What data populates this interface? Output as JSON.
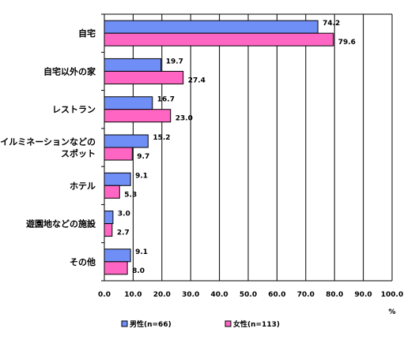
{
  "chart_data": {
    "type": "bar",
    "orientation": "horizontal",
    "categories": [
      [
        "自宅"
      ],
      [
        "自宅以外の家"
      ],
      [
        "レストラン"
      ],
      [
        "イルミネーションなどの",
        "スポット"
      ],
      [
        "ホテル"
      ],
      [
        "遊園地などの施設"
      ],
      [
        "その他"
      ]
    ],
    "series": [
      {
        "name": "男性(n=66)",
        "color": "#6f8ff7",
        "values": [
          74.2,
          19.7,
          16.7,
          15.2,
          9.1,
          3.0,
          9.1
        ]
      },
      {
        "name": "女性(n=113)",
        "color": "#ff66c4",
        "values": [
          79.6,
          27.4,
          23.0,
          9.7,
          5.3,
          2.7,
          8.0
        ]
      }
    ],
    "xlim": [
      0,
      100
    ],
    "xticks": [
      "0.0",
      "10.0",
      "20.0",
      "30.0",
      "40.0",
      "50.0",
      "60.0",
      "70.0",
      "80.0",
      "90.0",
      "100.0"
    ],
    "unit_label": "%",
    "grid": true,
    "legend": "bottom"
  }
}
